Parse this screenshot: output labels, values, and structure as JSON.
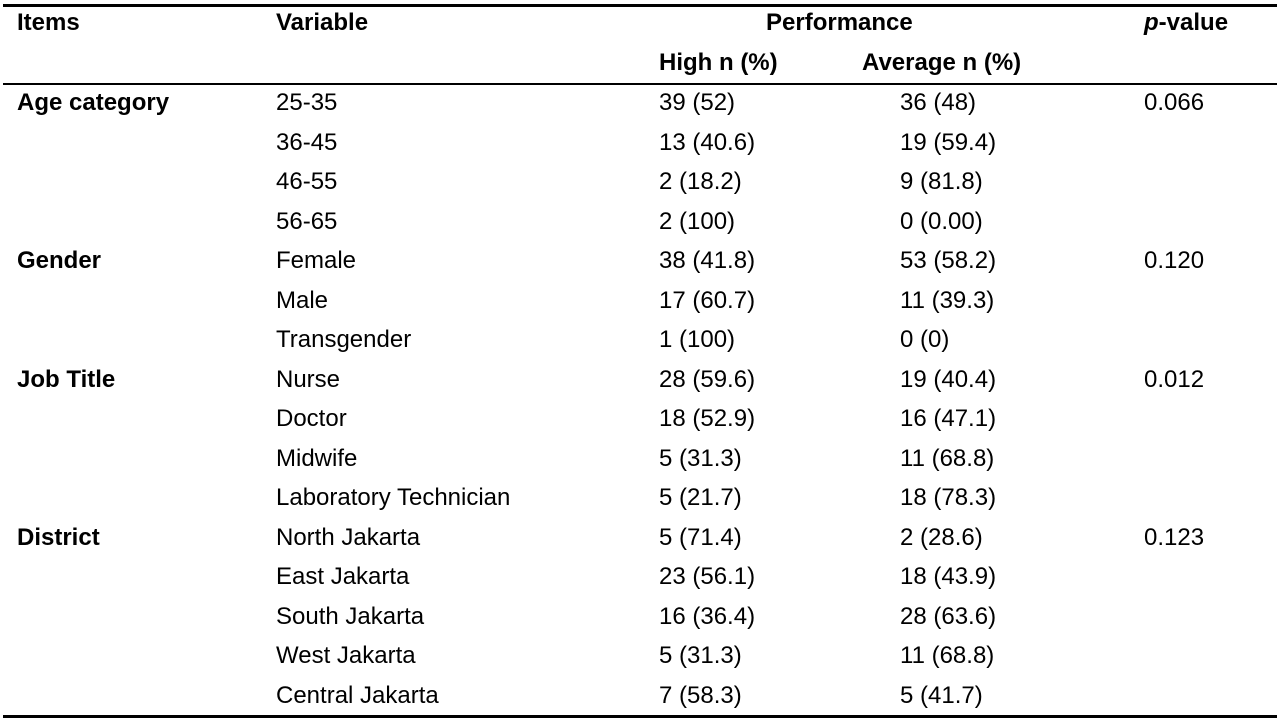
{
  "header": {
    "items": "Items",
    "variable": "Variable",
    "performance": "Performance",
    "p_italic": "p",
    "p_rest": "-value",
    "high": "High n (%)",
    "average": "Average n (%)"
  },
  "groups": [
    {
      "item": "Age category",
      "p_value": "0.066",
      "rows": [
        {
          "variable": "25-35",
          "high": "39 (52)",
          "average": "36 (48)"
        },
        {
          "variable": "36-45",
          "high": "13 (40.6)",
          "average": "19 (59.4)"
        },
        {
          "variable": "46-55",
          "high": "2 (18.2)",
          "average": "9 (81.8)"
        },
        {
          "variable": "56-65",
          "high": "2 (100)",
          "average": "0 (0.00)"
        }
      ]
    },
    {
      "item": "Gender",
      "p_value": "0.120",
      "rows": [
        {
          "variable": "Female",
          "high": "38 (41.8)",
          "average": "53 (58.2)"
        },
        {
          "variable": "Male",
          "high": "17 (60.7)",
          "average": "11 (39.3)"
        },
        {
          "variable": "Transgender",
          "high": "1 (100)",
          "average": "0 (0)"
        }
      ]
    },
    {
      "item": "Job Title",
      "p_value": "0.012",
      "rows": [
        {
          "variable": "Nurse",
          "high": "28 (59.6)",
          "average": "19 (40.4)"
        },
        {
          "variable": "Doctor",
          "high": "18 (52.9)",
          "average": "16 (47.1)"
        },
        {
          "variable": "Midwife",
          "high": "5 (31.3)",
          "average": "11 (68.8)"
        },
        {
          "variable": "Laboratory Technician",
          "high": "5 (21.7)",
          "average": "18 (78.3)"
        }
      ]
    },
    {
      "item": "District",
      "p_value": "0.123",
      "rows": [
        {
          "variable": "North Jakarta",
          "high": "5 (71.4)",
          "average": "2 (28.6)"
        },
        {
          "variable": "East Jakarta",
          "high": "23 (56.1)",
          "average": "18 (43.9)"
        },
        {
          "variable": "South Jakarta",
          "high": "16 (36.4)",
          "average": "28 (63.6)"
        },
        {
          "variable": "West Jakarta",
          "high": "5 (31.3)",
          "average": "11 (68.8)"
        },
        {
          "variable": "Central Jakarta",
          "high": "7 (58.3)",
          "average": "5 (41.7)"
        }
      ]
    }
  ]
}
